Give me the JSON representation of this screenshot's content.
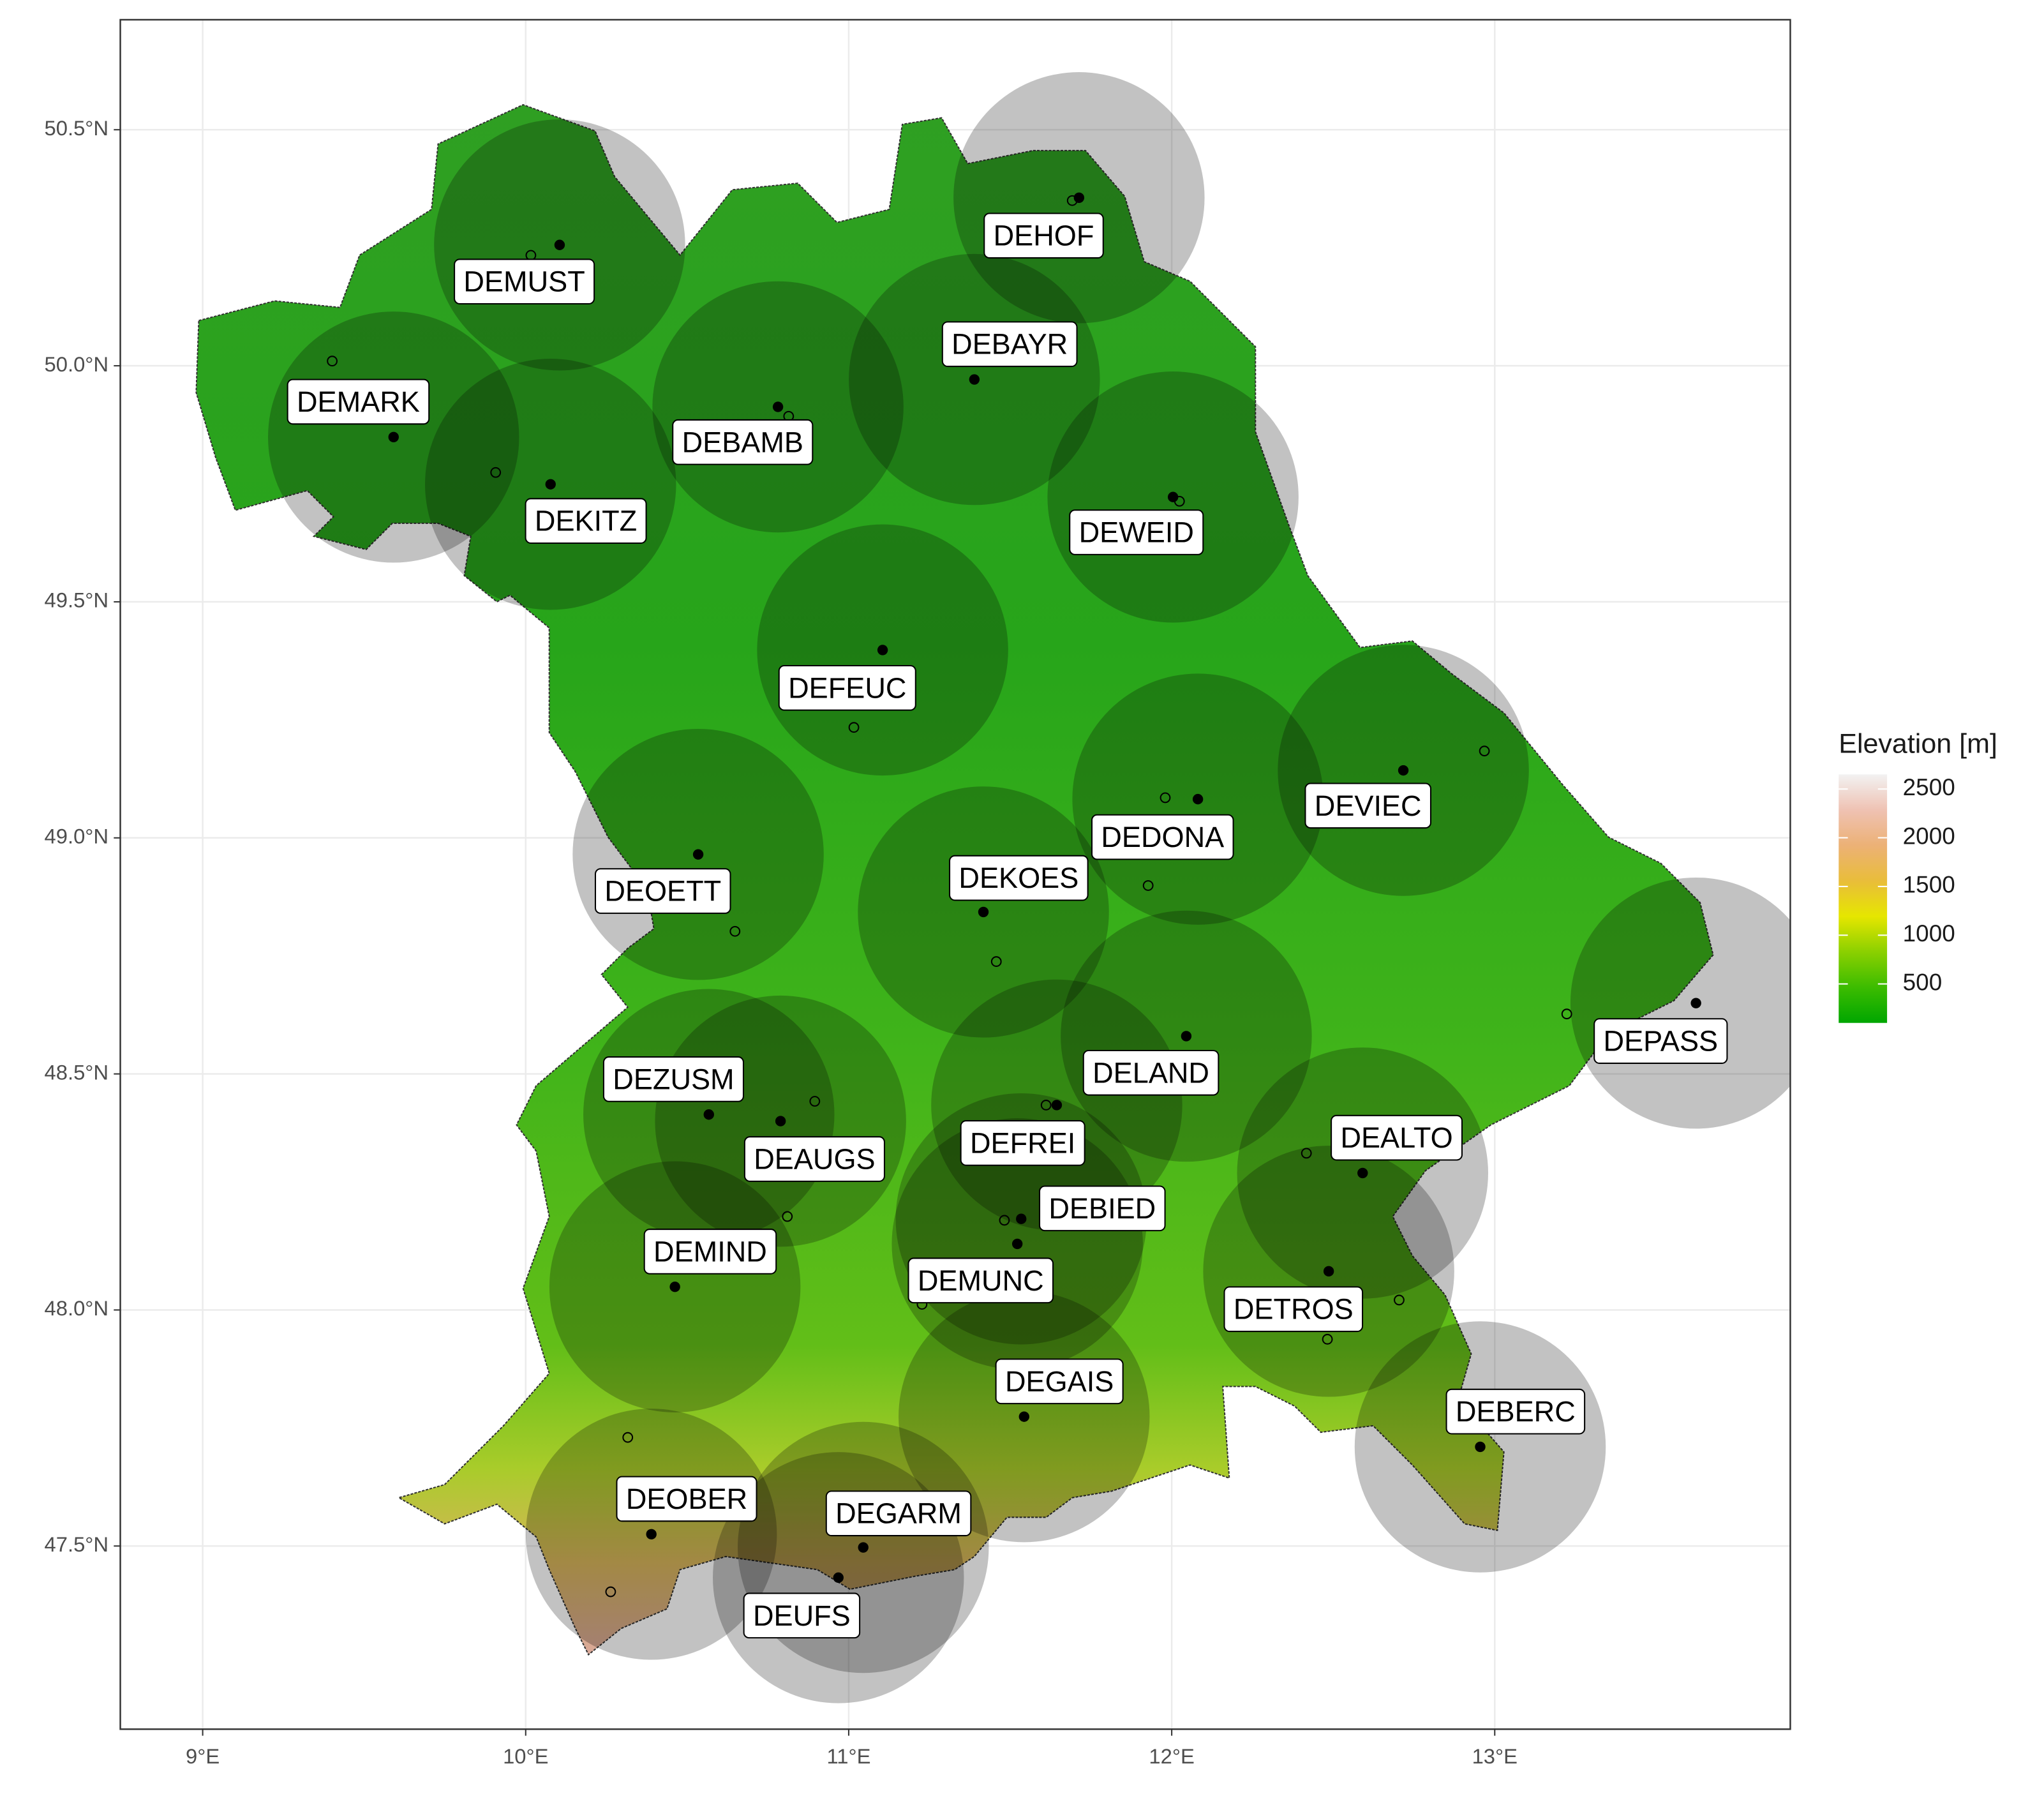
{
  "map": {
    "x_axis": {
      "lim": [
        8.745,
        13.915
      ],
      "ticks": [
        {
          "value": 9,
          "label": "9°E"
        },
        {
          "value": 10,
          "label": "10°E"
        },
        {
          "value": 11,
          "label": "11°E"
        },
        {
          "value": 12,
          "label": "12°E"
        },
        {
          "value": 13,
          "label": "13°E"
        }
      ]
    },
    "y_axis": {
      "lim": [
        47.112,
        50.733
      ],
      "ticks": [
        {
          "value": 47.5,
          "label": "47.5°N"
        },
        {
          "value": 48,
          "label": "48.0°N"
        },
        {
          "value": 48.5,
          "label": "48.5°N"
        },
        {
          "value": 49,
          "label": "49.0°N"
        },
        {
          "value": 49.5,
          "label": "49.5°N"
        },
        {
          "value": 50,
          "label": "50.0°N"
        },
        {
          "value": 50.5,
          "label": "50.5°N"
        }
      ]
    },
    "legend": {
      "title": "Elevation [m]",
      "lim": [
        100,
        2650
      ],
      "ticks": [
        500,
        1000,
        1500,
        2000,
        2500
      ],
      "colors": [
        "#00a600",
        "#3cbc00",
        "#8bd000",
        "#e6e600",
        "#e9bd3a",
        "#ecb176",
        "#efc2b3",
        "#f2f2f2"
      ]
    },
    "stations": {
      "names": [
        "DEMUST",
        "DEHOF",
        "DEBAYR",
        "DEMARK",
        "DEBAMB",
        "DEKITZ",
        "DEWEID",
        "DEFEUC",
        "DEVIEC",
        "DEDONA",
        "DEKOES",
        "DEOETT",
        "DEPASS",
        "DELAND",
        "DEZUSM",
        "DEAUGS",
        "DEFREI",
        "DEALTO",
        "DEBIED",
        "DEMUNC",
        "DEMIND",
        "DETROS",
        "DEGAIS",
        "DEBERC",
        "DEOBER",
        "DEGARM",
        "DEUFS"
      ],
      "lon": [
        10.105,
        11.713,
        11.389,
        9.591,
        10.781,
        10.077,
        12.004,
        11.105,
        12.717,
        12.081,
        11.417,
        10.534,
        13.623,
        12.045,
        10.567,
        10.789,
        11.644,
        12.591,
        11.534,
        11.522,
        10.462,
        12.486,
        11.543,
        12.955,
        10.389,
        11.045,
        10.968
      ],
      "lat": [
        50.256,
        50.356,
        49.971,
        49.849,
        49.913,
        49.749,
        49.722,
        49.398,
        49.143,
        49.082,
        48.843,
        48.965,
        48.65,
        48.58,
        48.414,
        48.4,
        48.434,
        48.29,
        48.193,
        48.14,
        48.049,
        48.082,
        47.774,
        47.71,
        47.525,
        47.497,
        47.433
      ]
    },
    "unlabeled_sites": {
      "lon": [
        9.401,
        9.907,
        10.016,
        10.814,
        11.692,
        12.024,
        11.016,
        10.648,
        11.457,
        11.98,
        11.927,
        12.968,
        13.223,
        11.611,
        10.895,
        10.81,
        11.482,
        12.417,
        11.227,
        12.704,
        12.482,
        10.316,
        10.263
      ],
      "lat": [
        50.01,
        49.774,
        50.234,
        49.893,
        50.35,
        49.713,
        49.234,
        48.802,
        48.738,
        49.085,
        48.899,
        49.184,
        48.627,
        48.434,
        48.442,
        48.198,
        48.19,
        48.332,
        48.012,
        48.021,
        47.938,
        47.73,
        47.403
      ]
    }
  }
}
